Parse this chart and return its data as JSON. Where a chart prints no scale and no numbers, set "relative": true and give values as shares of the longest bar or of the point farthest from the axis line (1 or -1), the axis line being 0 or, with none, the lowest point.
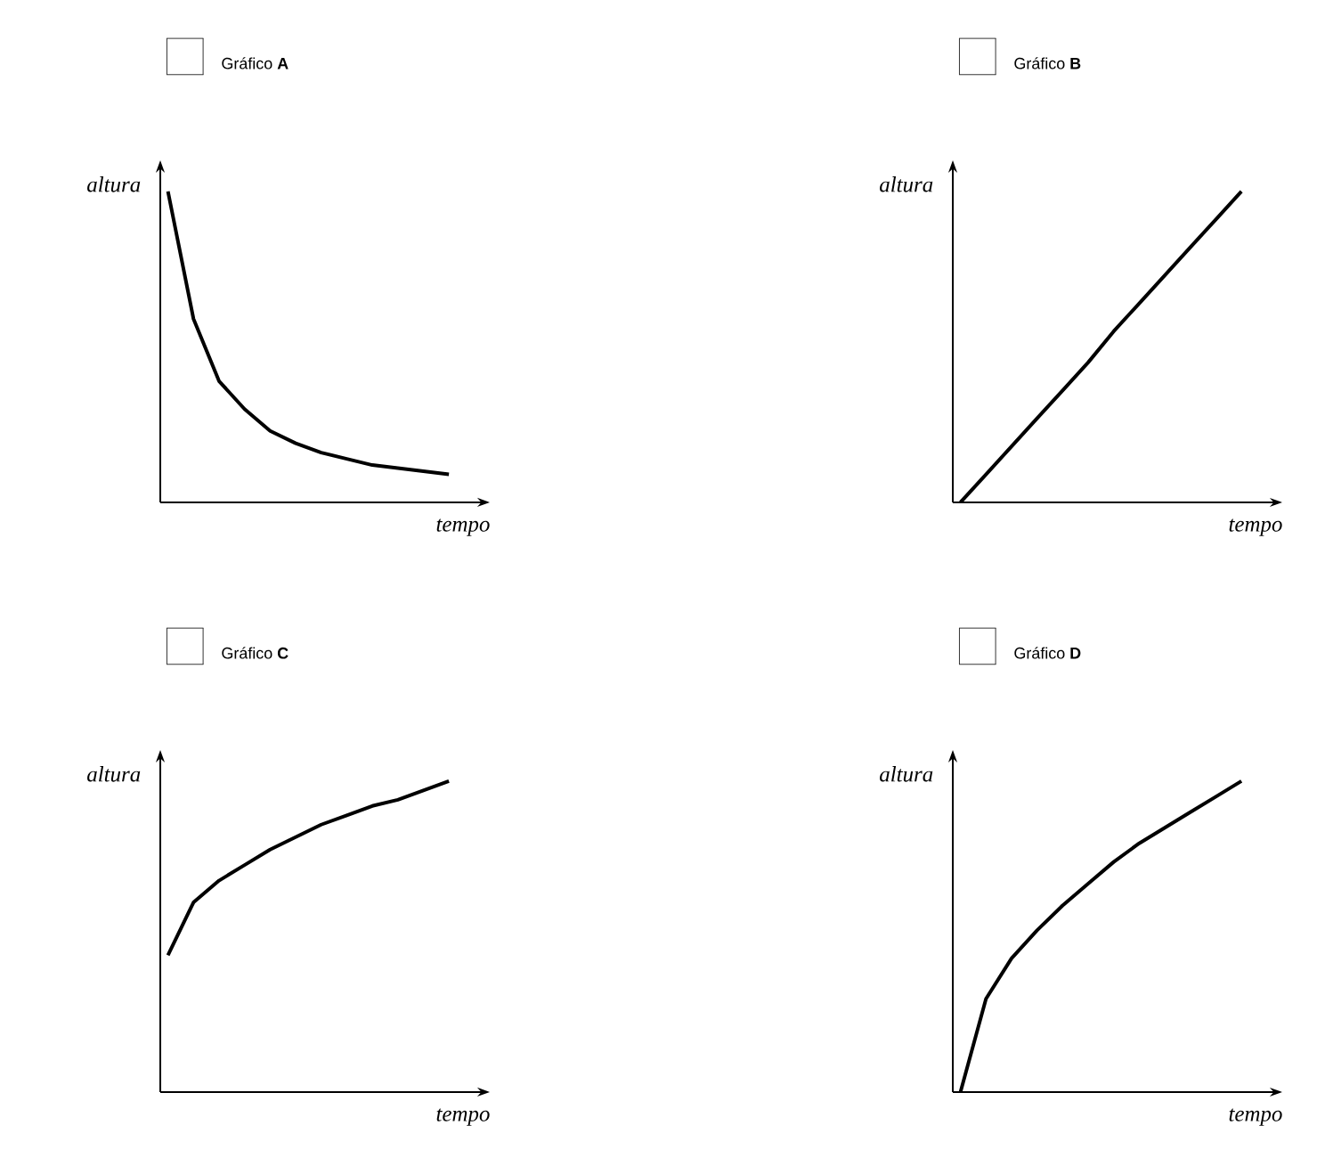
{
  "chart_data": [
    {
      "type": "line",
      "title": "Gráfico **A**",
      "xlabel": "tempo",
      "ylabel": "altura",
      "relative": true,
      "color": "#000000",
      "categories": [
        null,
        null,
        null,
        null,
        null,
        null,
        null,
        null,
        null,
        null,
        null,
        null
      ],
      "values": [
        1,
        0.59,
        0.39,
        0.3,
        0.23,
        0.19,
        0.16,
        0.14,
        0.12,
        0.11,
        0.1,
        0.09
      ]
    },
    {
      "type": "line",
      "title": "Gráfico **B**",
      "xlabel": "tempo",
      "ylabel": "altura",
      "relative": true,
      "color": "#000000",
      "categories": [
        null,
        null,
        null,
        null,
        null,
        null,
        null,
        null,
        null,
        null,
        null,
        null
      ],
      "values": [
        0,
        0.09,
        0.18,
        0.27,
        0.36,
        0.45,
        0.55,
        0.64,
        0.73,
        0.82,
        0.91,
        1
      ]
    },
    {
      "type": "line",
      "title": "Gráfico **C**",
      "xlabel": "tempo",
      "ylabel": "altura",
      "relative": true,
      "color": "#000000",
      "categories": [
        null,
        null,
        null,
        null,
        null,
        null,
        null,
        null,
        null,
        null,
        null,
        null
      ],
      "values": [
        0.44,
        0.61,
        0.68,
        0.73,
        0.78,
        0.82,
        0.86,
        0.89,
        0.92,
        0.94,
        0.97,
        1
      ]
    },
    {
      "type": "line",
      "title": "Gráfico **D**",
      "xlabel": "tempo",
      "ylabel": "altura",
      "relative": true,
      "color": "#000000",
      "categories": [
        null,
        null,
        null,
        null,
        null,
        null,
        null,
        null,
        null,
        null,
        null,
        null
      ],
      "values": [
        0,
        0.3,
        0.43,
        0.52,
        0.6,
        0.67,
        0.74,
        0.8,
        0.85,
        0.9,
        0.95,
        1
      ]
    }
  ]
}
